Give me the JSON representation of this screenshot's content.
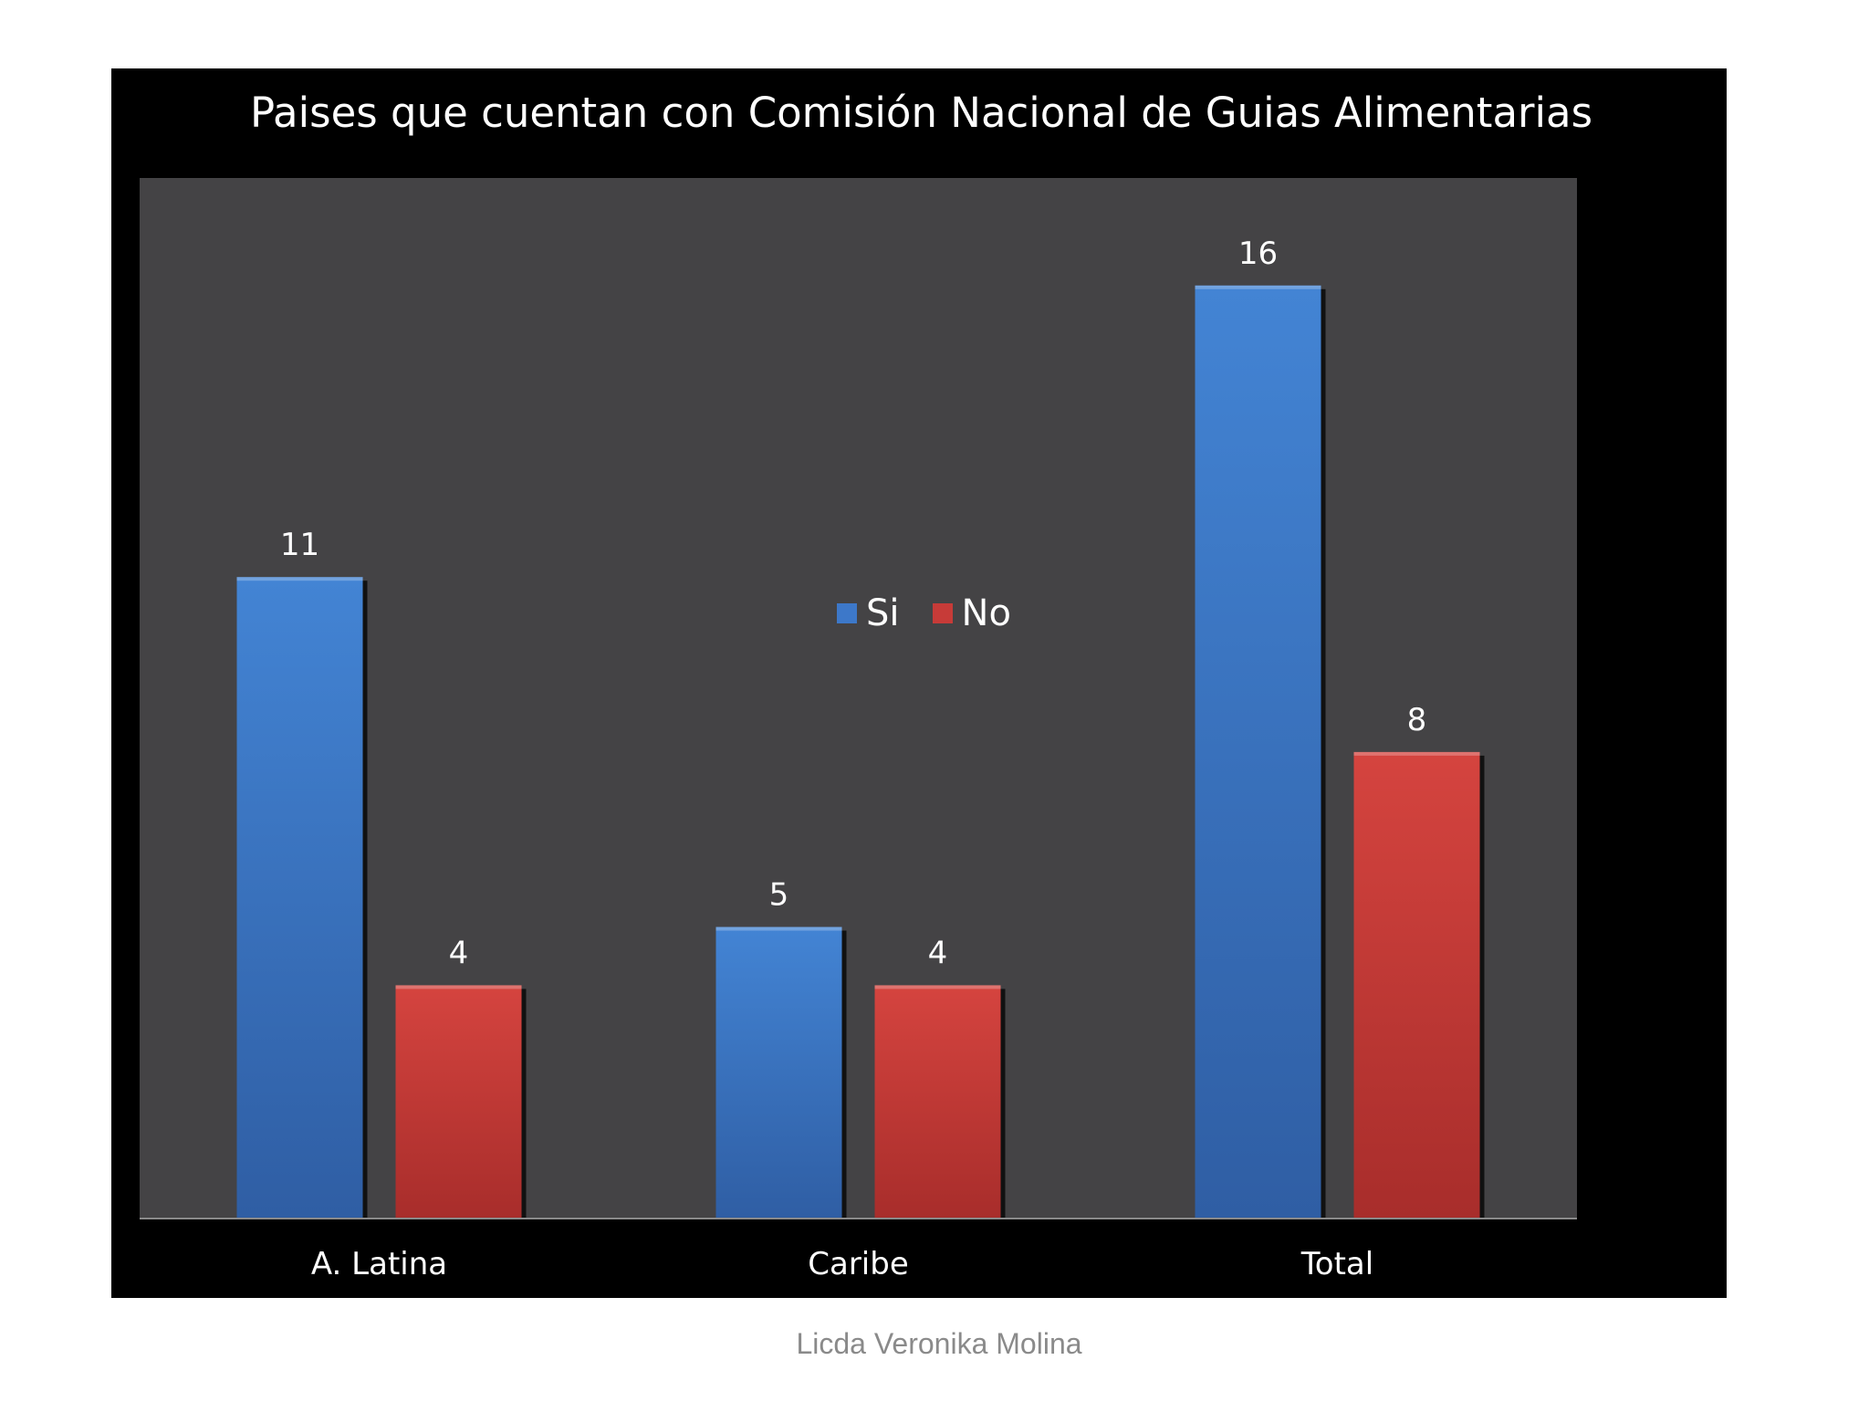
{
  "chart_data": {
    "type": "bar",
    "title": "Paises que cuentan con Comisión Nacional de Guias Alimentarias",
    "categories": [
      "A. Latina",
      "Caribe",
      "Total"
    ],
    "series": [
      {
        "name": "Si",
        "values": [
          11,
          5,
          16
        ],
        "color": "#3d78c9"
      },
      {
        "name": "No",
        "values": [
          4,
          4,
          8
        ],
        "color": "#c73b38"
      }
    ],
    "ylim": [
      0,
      18
    ],
    "xlabel": "",
    "ylabel": "",
    "grid": false,
    "legend_position": "center",
    "data_labels": true,
    "background_color": "#000000",
    "plot_area_color": "#444345"
  },
  "footer": {
    "credit": "Licda Veronika Molina"
  }
}
